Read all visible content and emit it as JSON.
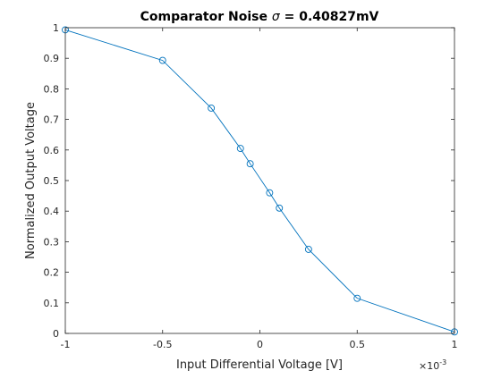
{
  "chart_data": {
    "type": "line",
    "title": {
      "prefix": "Comparator Noise ",
      "symbol": "σ",
      "suffix": " = 0.40827mV"
    },
    "xlabel": "Input Differential Voltage [V]",
    "ylabel": "Normalized Output Voltage",
    "x_exponent_label": "×10",
    "x_exponent": "-3",
    "xlim": [
      -1,
      1
    ],
    "ylim": [
      0,
      1
    ],
    "x_scale_factor": 0.001,
    "x_ticks": [
      -1,
      -0.5,
      0,
      0.5,
      1
    ],
    "x_tick_labels": [
      "-1",
      "-0.5",
      "0",
      "0.5",
      "1"
    ],
    "y_ticks": [
      0,
      0.1,
      0.2,
      0.3,
      0.4,
      0.5,
      0.6,
      0.7,
      0.8,
      0.9,
      1
    ],
    "y_tick_labels": [
      "0",
      "0.1",
      "0.2",
      "0.3",
      "0.4",
      "0.5",
      "0.6",
      "0.7",
      "0.8",
      "0.9",
      "1"
    ],
    "grid": false,
    "series": [
      {
        "color": "#0072BD",
        "marker": "circle",
        "x": [
          -1,
          -0.5,
          -0.25,
          -0.1,
          -0.05,
          0.05,
          0.1,
          0.25,
          0.5,
          1
        ],
        "y": [
          0.993,
          0.893,
          0.737,
          0.605,
          0.555,
          0.46,
          0.41,
          0.275,
          0.115,
          0.005
        ]
      }
    ]
  }
}
